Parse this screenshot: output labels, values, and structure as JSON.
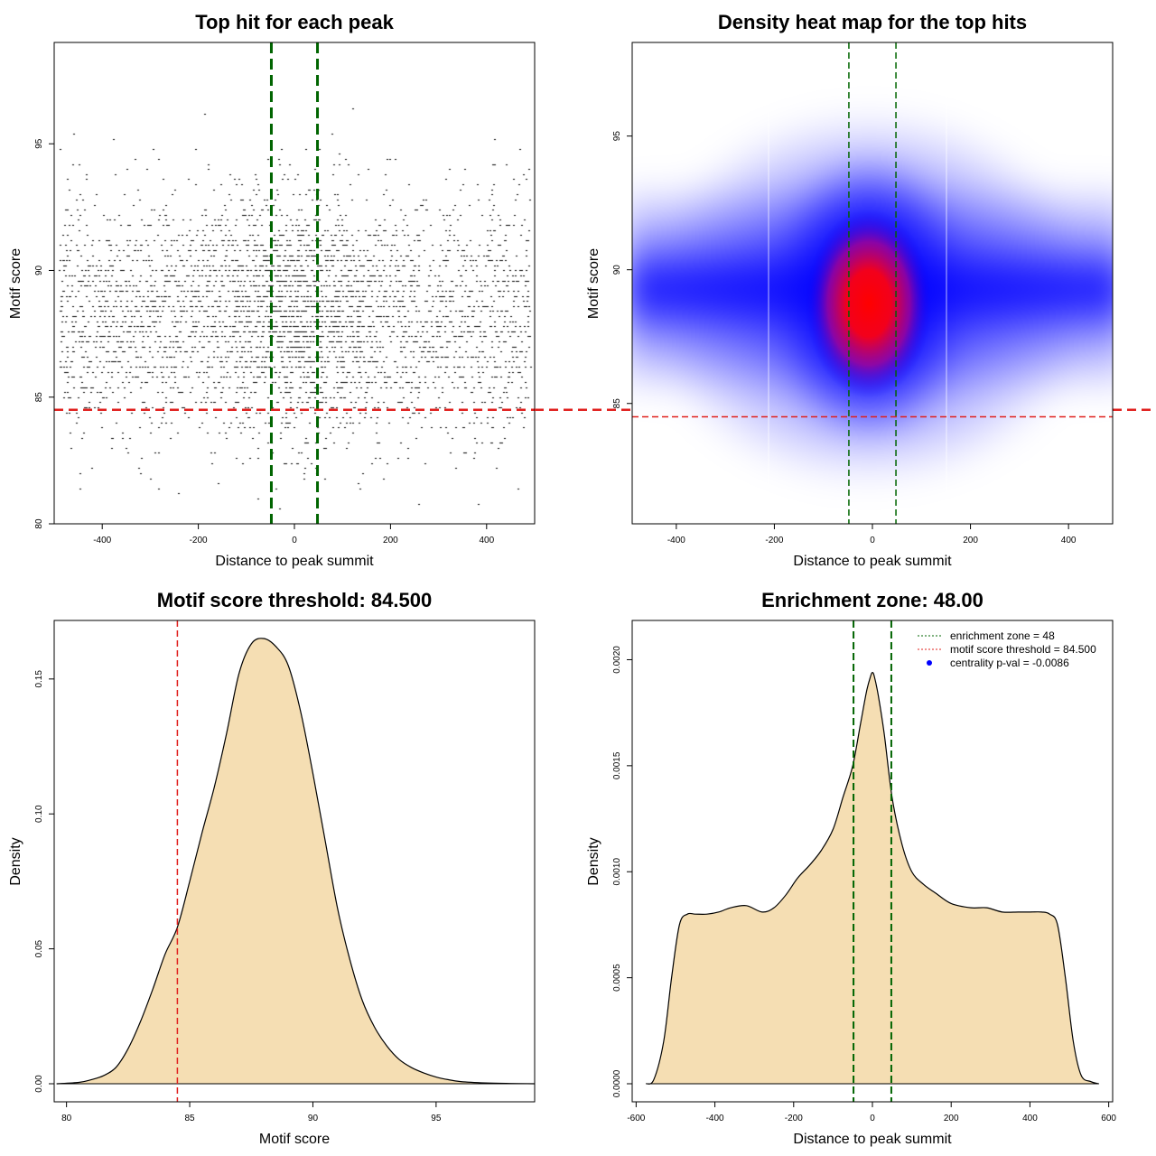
{
  "chart_data": [
    {
      "type": "scatter",
      "title": "Top hit for each peak",
      "xlabel": "Distance to peak summit",
      "ylabel": "Motif score",
      "xlim": [
        -500,
        500
      ],
      "ylim": [
        80,
        99
      ],
      "xticks": [
        -400,
        -200,
        0,
        200,
        400
      ],
      "yticks": [
        80,
        85,
        90,
        95
      ],
      "point_model": {
        "x_range": [
          -490,
          490
        ],
        "y_mean": 88.2,
        "y_sd": 2.4,
        "y_min": 80.4,
        "y_max": 98.2,
        "center_sd": 90,
        "count": 9000
      },
      "enrichment_zone": 48,
      "score_threshold": 84.5,
      "grid": false,
      "colors": {
        "points": "#000000",
        "zone_lines": "#006400",
        "threshold_line": "#e0201e"
      }
    },
    {
      "type": "heatmap",
      "title": "Density heat map for the top hits",
      "xlabel": "Distance to peak summit",
      "ylabel": "Motif score",
      "xlim": [
        -490,
        490
      ],
      "ylim": [
        80.5,
        98.5
      ],
      "xticks": [
        -400,
        -200,
        0,
        200,
        400
      ],
      "yticks": [
        85,
        90,
        95
      ],
      "peak": {
        "x": 0,
        "y": 88.5
      },
      "enrichment_zone": 48,
      "score_threshold": 84.5,
      "colors": {
        "low": "#ffffff",
        "mid": "#0000ff",
        "high": "#ff0000",
        "zone_lines": "#006400",
        "threshold_line": "#e0201e"
      }
    },
    {
      "type": "area",
      "title": "Motif score threshold: 84.500",
      "xlabel": "Motif score",
      "ylabel": "Density",
      "xlim": [
        79.5,
        99
      ],
      "ylim": [
        0,
        0.165
      ],
      "xticks": [
        80,
        85,
        90,
        95
      ],
      "yticks": [
        0.0,
        0.05,
        0.1,
        0.15
      ],
      "ytick_labels": [
        "0.00",
        "0.05",
        "0.10",
        "0.15"
      ],
      "x": [
        79.6,
        80.5,
        81.0,
        81.5,
        82.0,
        82.5,
        83.0,
        83.5,
        84.0,
        84.5,
        85.0,
        85.5,
        86.0,
        86.5,
        87.0,
        87.5,
        88.0,
        88.5,
        89.0,
        89.5,
        90.0,
        90.5,
        91.0,
        91.5,
        92.0,
        92.5,
        93.0,
        93.5,
        94.0,
        94.5,
        95.0,
        95.5,
        96.0,
        97.0,
        98.0,
        99.0
      ],
      "y": [
        0.0,
        0.0005,
        0.0015,
        0.003,
        0.006,
        0.013,
        0.023,
        0.035,
        0.048,
        0.058,
        0.075,
        0.093,
        0.11,
        0.13,
        0.152,
        0.163,
        0.165,
        0.162,
        0.155,
        0.138,
        0.115,
        0.09,
        0.065,
        0.046,
        0.031,
        0.021,
        0.014,
        0.009,
        0.006,
        0.004,
        0.0025,
        0.0015,
        0.0008,
        0.0003,
        0.0001,
        0.0
      ],
      "threshold_line": 84.5,
      "colors": {
        "fill": "#f5deb3",
        "line": "#000000",
        "threshold_line": "#e0201e"
      }
    },
    {
      "type": "area",
      "title": "Enrichment zone: 48.00",
      "xlabel": "Distance to peak summit",
      "ylabel": "Density",
      "xlim": [
        -610,
        610
      ],
      "ylim": [
        0,
        0.0021
      ],
      "xticks": [
        -600,
        -400,
        -200,
        0,
        200,
        400,
        600
      ],
      "yticks": [
        0.0,
        0.0005,
        0.001,
        0.0015,
        0.002
      ],
      "ytick_labels": [
        "0.0000",
        "0.0005",
        "0.0010",
        "0.0015",
        "0.0020"
      ],
      "x": [
        -575,
        -555,
        -530,
        -510,
        -490,
        -470,
        -450,
        -420,
        -390,
        -360,
        -320,
        -280,
        -250,
        -220,
        -190,
        -160,
        -130,
        -100,
        -75,
        -50,
        -30,
        -15,
        -5,
        0,
        5,
        15,
        30,
        50,
        75,
        100,
        130,
        160,
        200,
        250,
        290,
        330,
        370,
        400,
        430,
        450,
        470,
        490,
        510,
        530,
        555,
        575
      ],
      "y": [
        0.0,
        2e-05,
        0.0002,
        0.0005,
        0.00075,
        0.0008,
        0.0008,
        0.0008,
        0.00081,
        0.00083,
        0.00084,
        0.00081,
        0.00083,
        0.00089,
        0.00097,
        0.00103,
        0.0011,
        0.0012,
        0.00135,
        0.0015,
        0.0017,
        0.00185,
        0.00192,
        0.00194,
        0.00192,
        0.00183,
        0.00165,
        0.00135,
        0.00113,
        0.001,
        0.00094,
        0.0009,
        0.00085,
        0.00083,
        0.00083,
        0.00081,
        0.00081,
        0.00081,
        0.00081,
        0.0008,
        0.00075,
        0.0005,
        0.0002,
        4e-05,
        1e-05,
        0.0
      ],
      "zone_lines": [
        -48,
        48
      ],
      "legend": {
        "placement": "top-right",
        "entries": [
          {
            "label": "enrichment zone = 48",
            "color": "#006400",
            "style": "dotted"
          },
          {
            "label": "motif score threshold = 84.500",
            "color": "#e0201e",
            "style": "dotted"
          },
          {
            "label": "centrality p-val = -0.0086",
            "color": "#0000ff",
            "style": "point"
          }
        ]
      },
      "colors": {
        "fill": "#f5deb3",
        "line": "#000000",
        "zone_lines": "#006400"
      }
    }
  ]
}
